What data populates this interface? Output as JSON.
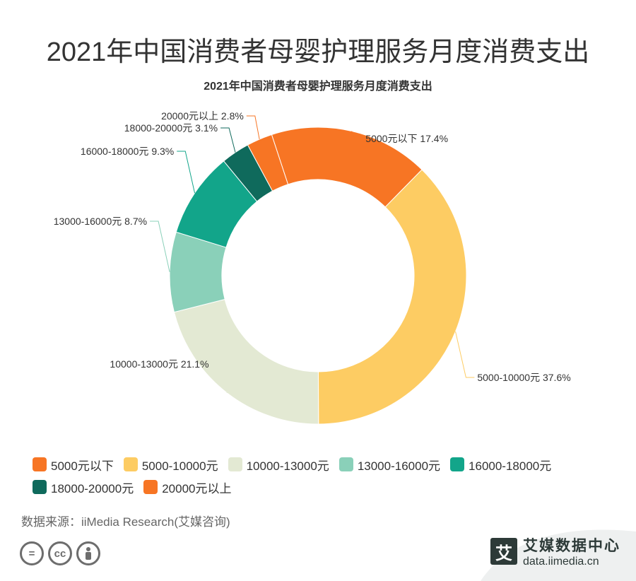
{
  "title": "2021年中国消费者母婴护理服务月度消费支出",
  "chart_data": {
    "type": "pie",
    "subtype": "donut",
    "title": "2021年中国消费者母婴护理服务月度消费支出",
    "categories": [
      "5000元以下",
      "5000-10000元",
      "10000-13000元",
      "13000-16000元",
      "16000-18000元",
      "18000-20000元",
      "20000元以上"
    ],
    "values": [
      17.4,
      37.6,
      21.1,
      8.7,
      9.3,
      3.1,
      2.8
    ],
    "colors": [
      "#f77524",
      "#fdcc63",
      "#e3e9d3",
      "#8ad0b9",
      "#12a58a",
      "#0f6a5c",
      "#f77524"
    ],
    "data_labels": [
      "5000元以下 17.4%",
      "5000-10000元 37.6%",
      "10000-13000元 21.1%",
      "13000-16000元 8.7%",
      "16000-18000元 9.3%",
      "18000-20000元 3.1%",
      "20000元以上 2.8%"
    ],
    "legend_position": "bottom"
  },
  "source": "数据来源：iiMedia Research(艾媒咨询)",
  "brand": {
    "badge": "艾",
    "name": "艾媒数据中心",
    "url": "data.iimedia.cn"
  },
  "license_icons": [
    "=",
    "cc",
    "person-icon"
  ]
}
